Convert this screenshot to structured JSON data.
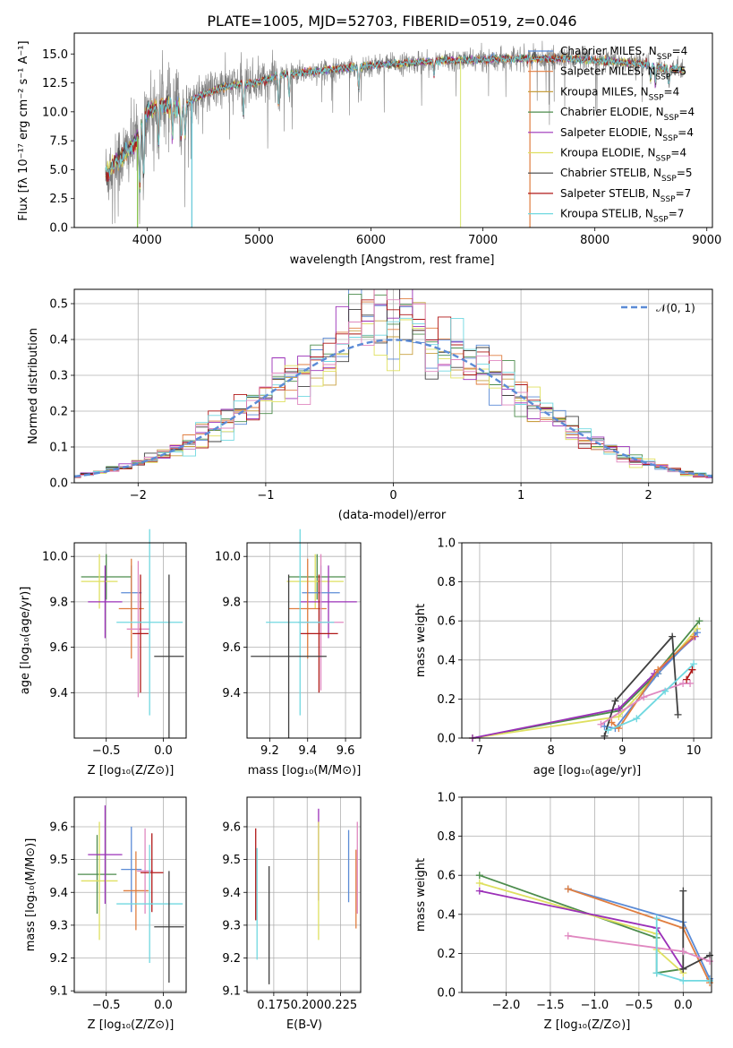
{
  "chart_data": [
    {
      "id": "spectrum",
      "type": "line",
      "title": "PLATE=1005, MJD=52703, FIBERID=0519, z=0.046",
      "xlabel": "wavelength [Angstrom, rest frame]",
      "ylabel": "Flux [fλ 10⁻¹⁷ erg cm⁻² s⁻¹ A⁻¹]",
      "xlim": [
        3350,
        9050
      ],
      "ylim": [
        0,
        16.8
      ],
      "xticks": [
        "4000",
        "5000",
        "6000",
        "7000",
        "8000",
        "9000"
      ],
      "yticks": [
        "0.0",
        "2.5",
        "5.0",
        "7.5",
        "10.0",
        "12.5",
        "15.0"
      ],
      "data_color": "#7f7f7f",
      "data_wavelength_range": [
        3630,
        8800
      ],
      "continuum": {
        "x": [
          3630,
          3700,
          3800,
          3900,
          3950,
          4000,
          4100,
          4200,
          4300,
          4400,
          4500,
          4700,
          5000,
          5200,
          5500,
          5800,
          6000,
          6300,
          6600,
          7000,
          7200,
          7500,
          7800,
          8000,
          8200,
          8400,
          8600,
          8800
        ],
        "y": [
          4.5,
          5.5,
          6.3,
          7.5,
          8.5,
          10.0,
          10.5,
          10.6,
          10.2,
          11.0,
          11.5,
          12.2,
          12.6,
          13.2,
          13.5,
          13.8,
          14.0,
          14.2,
          14.4,
          14.5,
          14.6,
          14.6,
          14.6,
          14.4,
          14.3,
          14.2,
          13.8,
          13.6
        ]
      },
      "absorption_features": [
        {
          "x": 3934,
          "y": 2.8
        },
        {
          "x": 3969,
          "y": 3.5
        },
        {
          "x": 4102,
          "y": 7.0
        },
        {
          "x": 4227,
          "y": 7.5
        },
        {
          "x": 4304,
          "y": 7.2
        },
        {
          "x": 4340,
          "y": 7.5
        },
        {
          "x": 4861,
          "y": 9.5
        },
        {
          "x": 5175,
          "y": 10.0
        },
        {
          "x": 5270,
          "y": 11.0
        },
        {
          "x": 5890,
          "y": 11.5
        },
        {
          "x": 6563,
          "y": 13.0
        },
        {
          "x": 8498,
          "y": 12.5
        },
        {
          "x": 8542,
          "y": 12.2
        },
        {
          "x": 8662,
          "y": 12.4
        }
      ],
      "model_edge_drops": [
        {
          "x": 3915,
          "color": "#7fbf3f"
        },
        {
          "x": 4400,
          "color": "#60c8d8"
        },
        {
          "x": 6800,
          "color": "#dde880"
        },
        {
          "x": 7420,
          "color": "#e07e40"
        }
      ],
      "series": [
        {
          "name": "Chabrier MILES, N",
          "sub": "SSP",
          "suffix": "=4",
          "color": "#5b8bd6"
        },
        {
          "name": "Salpeter MILES, N",
          "sub": "SSP",
          "suffix": "=5",
          "color": "#e07e40"
        },
        {
          "name": "Kroupa MILES, N",
          "sub": "SSP",
          "suffix": "=4",
          "color": "#c8a040"
        },
        {
          "name": "Chabrier ELODIE, N",
          "sub": "SSP",
          "suffix": "=4",
          "color": "#4c8c4c"
        },
        {
          "name": "Salpeter ELODIE, N",
          "sub": "SSP",
          "suffix": "=4",
          "color": "#9b30b8"
        },
        {
          "name": "Kroupa ELODIE, N",
          "sub": "SSP",
          "suffix": "=4",
          "color": "#dfe060"
        },
        {
          "name": "Chabrier STELIB, N",
          "sub": "SSP",
          "suffix": "=5",
          "color": "#404040"
        },
        {
          "name": "Salpeter STELIB, N",
          "sub": "SSP",
          "suffix": "=7",
          "color": "#b01818"
        },
        {
          "name": "Kroupa STELIB, N",
          "sub": "SSP",
          "suffix": "=7",
          "color": "#70d8e0"
        }
      ]
    },
    {
      "id": "residuals",
      "type": "histogram",
      "xlabel": "(data-model)/error",
      "ylabel": "Normed distribution",
      "xlim": [
        -2.5,
        2.5
      ],
      "ylim": [
        0,
        0.54
      ],
      "xticks": [
        "−2",
        "−1",
        "0",
        "1",
        "2"
      ],
      "yticks": [
        "0.0",
        "0.1",
        "0.2",
        "0.3",
        "0.4",
        "0.5"
      ],
      "legend": "𝒩(0, 1)",
      "gaussian_color": "#5b8bd6",
      "bin_width": 0.1,
      "histogram_colors": [
        "#5b8bd6",
        "#e07e40",
        "#c8a040",
        "#4c8c4c",
        "#9b30b8",
        "#dfe060",
        "#404040",
        "#b01818",
        "#70d8e0",
        "#e088c0"
      ]
    },
    {
      "id": "age-vs-Z",
      "type": "errorbar",
      "xlabel": "Z [log₁₀(Z/Z⊙)]",
      "ylabel": "age  [log₁₀(age/yr)]",
      "xlim": [
        -0.78,
        0.2
      ],
      "ylim": [
        9.2,
        10.06
      ],
      "xticks": [
        "−0.5",
        "0.0"
      ],
      "yticks": [
        "9.4",
        "9.6",
        "9.8",
        "10.0"
      ],
      "points": [
        {
          "x": -0.5,
          "y": 9.91,
          "xerr": 0.22,
          "yerr": 0.1,
          "color": "#4c8c4c"
        },
        {
          "x": -0.56,
          "y": 9.89,
          "xerr": 0.16,
          "yerr": 0.12,
          "color": "#dfe060"
        },
        {
          "x": -0.51,
          "y": 9.8,
          "xerr": 0.15,
          "yerr": 0.16,
          "color": "#9b30b8"
        },
        {
          "x": -0.28,
          "y": 9.84,
          "xerr": 0.09,
          "yerr": 0.12,
          "color": "#5b8bd6"
        },
        {
          "x": -0.28,
          "y": 9.77,
          "xerr": 0.11,
          "yerr": 0.22,
          "color": "#e07e40"
        },
        {
          "x": -0.22,
          "y": 9.68,
          "xerr": 0.1,
          "yerr": 0.3,
          "color": "#e088c0"
        },
        {
          "x": -0.2,
          "y": 9.66,
          "xerr": 0.07,
          "yerr": 0.26,
          "color": "#b01818"
        },
        {
          "x": -0.12,
          "y": 9.71,
          "xerr": 0.29,
          "yerr": 0.41,
          "color": "#70d8e0"
        },
        {
          "x": 0.05,
          "y": 9.56,
          "xerr": 0.13,
          "yerr": 0.36,
          "color": "#404040"
        }
      ]
    },
    {
      "id": "age-vs-mass",
      "type": "errorbar",
      "xlabel": "mass [log₁₀(M/M⊙)]",
      "ylabel": "",
      "xlim": [
        9.08,
        9.68
      ],
      "ylim": [
        9.2,
        10.06
      ],
      "xticks": [
        "9.2",
        "9.4",
        "9.6"
      ],
      "yticks": [
        "9.4",
        "9.6",
        "9.8",
        "10.0"
      ],
      "points": [
        {
          "x": 9.45,
          "y": 9.91,
          "xerr": 0.15,
          "yerr": 0.1,
          "color": "#4c8c4c"
        },
        {
          "x": 9.44,
          "y": 9.89,
          "xerr": 0.15,
          "yerr": 0.12,
          "color": "#dfe060"
        },
        {
          "x": 9.51,
          "y": 9.8,
          "xerr": 0.15,
          "yerr": 0.16,
          "color": "#9b30b8"
        },
        {
          "x": 9.47,
          "y": 9.84,
          "xerr": 0.1,
          "yerr": 0.12,
          "color": "#5b8bd6"
        },
        {
          "x": 9.4,
          "y": 9.77,
          "xerr": 0.1,
          "yerr": 0.22,
          "color": "#e07e40"
        },
        {
          "x": 9.47,
          "y": 9.71,
          "xerr": 0.12,
          "yerr": 0.3,
          "color": "#e088c0"
        },
        {
          "x": 9.46,
          "y": 9.66,
          "xerr": 0.1,
          "yerr": 0.26,
          "color": "#b01818"
        },
        {
          "x": 9.36,
          "y": 9.71,
          "xerr": 0.18,
          "yerr": 0.41,
          "color": "#70d8e0"
        },
        {
          "x": 9.3,
          "y": 9.56,
          "xerr": 0.2,
          "yerr": 0.36,
          "color": "#404040"
        }
      ]
    },
    {
      "id": "weight-vs-age",
      "type": "line",
      "xlabel": "age  [log₁₀(age/yr)]",
      "ylabel": "mass weight",
      "xlim": [
        6.75,
        10.25
      ],
      "ylim": [
        0,
        1.0
      ],
      "xticks": [
        "7",
        "8",
        "9",
        "10"
      ],
      "yticks": [
        "0.0",
        "0.2",
        "0.4",
        "0.6",
        "0.8",
        "1.0"
      ],
      "series": [
        {
          "color": "#4c8c4c",
          "x": [
            6.9,
            8.95,
            9.4,
            10.08
          ],
          "y": [
            0.0,
            0.14,
            0.3,
            0.6
          ]
        },
        {
          "color": "#dfe060",
          "x": [
            6.9,
            8.95,
            9.5,
            10.05
          ],
          "y": [
            0.0,
            0.11,
            0.33,
            0.56
          ]
        },
        {
          "color": "#9b30b8",
          "x": [
            6.9,
            8.95,
            9.45,
            10.02
          ],
          "y": [
            0.0,
            0.15,
            0.33,
            0.52
          ]
        },
        {
          "color": "#5b8bd6",
          "x": [
            8.75,
            8.9,
            9.5,
            10.05
          ],
          "y": [
            0.06,
            0.05,
            0.33,
            0.54
          ]
        },
        {
          "color": "#e07e40",
          "x": [
            8.85,
            8.95,
            9.5,
            10.0
          ],
          "y": [
            0.08,
            0.05,
            0.35,
            0.52
          ]
        },
        {
          "color": "#404040",
          "x": [
            8.75,
            8.9,
            9.7,
            9.78
          ],
          "y": [
            0.01,
            0.19,
            0.52,
            0.12
          ]
        },
        {
          "color": "#e088c0",
          "x": [
            8.7,
            9.3,
            9.85,
            9.95
          ],
          "y": [
            0.07,
            0.21,
            0.28,
            0.28
          ]
        },
        {
          "color": "#70d8e0",
          "x": [
            8.8,
            9.2,
            9.6,
            10.0
          ],
          "y": [
            0.04,
            0.1,
            0.24,
            0.38
          ]
        },
        {
          "color": "#b01818",
          "x": [
            9.9,
            9.98
          ],
          "y": [
            0.3,
            0.35
          ]
        }
      ]
    },
    {
      "id": "mass-vs-Z",
      "type": "errorbar",
      "xlabel": "Z [log₁₀(Z/Z⊙)]",
      "ylabel": "mass [log₁₀(M/M⊙)]",
      "xlim": [
        -0.78,
        0.2
      ],
      "ylim": [
        9.095,
        9.69
      ],
      "xticks": [
        "−0.5",
        "0.0"
      ],
      "yticks": [
        "9.1",
        "9.2",
        "9.3",
        "9.4",
        "9.5",
        "9.6"
      ],
      "points": [
        {
          "x": -0.58,
          "y": 9.455,
          "xerr": 0.17,
          "yerr": 0.12,
          "color": "#4c8c4c"
        },
        {
          "x": -0.56,
          "y": 9.435,
          "xerr": 0.16,
          "yerr": 0.18,
          "color": "#dfe060"
        },
        {
          "x": -0.51,
          "y": 9.515,
          "xerr": 0.15,
          "yerr": 0.15,
          "color": "#9b30b8"
        },
        {
          "x": -0.28,
          "y": 9.47,
          "xerr": 0.09,
          "yerr": 0.13,
          "color": "#5b8bd6"
        },
        {
          "x": -0.24,
          "y": 9.405,
          "xerr": 0.11,
          "yerr": 0.12,
          "color": "#e07e40"
        },
        {
          "x": -0.16,
          "y": 9.465,
          "xerr": 0.07,
          "yerr": 0.13,
          "color": "#e088c0"
        },
        {
          "x": -0.1,
          "y": 9.46,
          "xerr": 0.1,
          "yerr": 0.12,
          "color": "#b01818"
        },
        {
          "x": -0.12,
          "y": 9.365,
          "xerr": 0.29,
          "yerr": 0.18,
          "color": "#70d8e0"
        },
        {
          "x": 0.05,
          "y": 9.295,
          "xerr": 0.13,
          "yerr": 0.17,
          "color": "#404040"
        }
      ]
    },
    {
      "id": "mass-vs-EBV",
      "type": "errorbar",
      "xlabel": "E(B-V)",
      "ylabel": "",
      "xlim": [
        0.155,
        0.24
      ],
      "ylim": [
        9.095,
        9.69
      ],
      "xticks": [
        "0.175",
        "0.200",
        "0.225"
      ],
      "yticks": [
        "9.1",
        "9.2",
        "9.3",
        "9.4",
        "9.5",
        "9.6"
      ],
      "points": [
        {
          "x": 0.1615,
          "y": 9.455,
          "yerr": 0.14,
          "color": "#b01818"
        },
        {
          "x": 0.1625,
          "y": 9.365,
          "yerr": 0.17,
          "color": "#70d8e0"
        },
        {
          "x": 0.1715,
          "y": 9.3,
          "yerr": 0.18,
          "color": "#404040"
        },
        {
          "x": 0.2085,
          "y": 9.515,
          "yerr": 0.14,
          "color": "#9b30b8"
        },
        {
          "x": 0.2085,
          "y": 9.435,
          "yerr": 0.18,
          "color": "#dfe060"
        },
        {
          "x": 0.231,
          "y": 9.48,
          "yerr": 0.11,
          "color": "#5b8bd6"
        },
        {
          "x": 0.2365,
          "y": 9.41,
          "yerr": 0.12,
          "color": "#e07e40"
        },
        {
          "x": 0.2375,
          "y": 9.475,
          "yerr": 0.14,
          "color": "#e088c0"
        }
      ]
    },
    {
      "id": "weight-vs-Z",
      "type": "line",
      "xlabel": "Z [log₁₀(Z/Z⊙)]",
      "ylabel": "mass weight",
      "xlim": [
        -2.5,
        0.32
      ],
      "ylim": [
        0,
        1.0
      ],
      "xticks": [
        "−2.0",
        "−1.5",
        "−1.0",
        "−0.5",
        "0.0"
      ],
      "yticks": [
        "0.0",
        "0.2",
        "0.4",
        "0.6",
        "0.8",
        "1.0"
      ],
      "series": [
        {
          "color": "#4c8c4c",
          "x": [
            -2.3,
            -0.3,
            -0.3,
            0.0
          ],
          "y": [
            0.6,
            0.28,
            0.1,
            0.12
          ]
        },
        {
          "color": "#dfe060",
          "x": [
            -2.3,
            -0.3,
            -0.3,
            0.0
          ],
          "y": [
            0.56,
            0.3,
            0.22,
            0.1
          ]
        },
        {
          "color": "#9b30b8",
          "x": [
            -2.3,
            -0.3,
            0.0
          ],
          "y": [
            0.52,
            0.33,
            0.12
          ]
        },
        {
          "color": "#5b8bd6",
          "x": [
            -1.3,
            0.0,
            0.3
          ],
          "y": [
            0.53,
            0.36,
            0.07
          ]
        },
        {
          "color": "#e07e40",
          "x": [
            -1.3,
            0.0,
            0.3
          ],
          "y": [
            0.53,
            0.33,
            0.05
          ]
        },
        {
          "color": "#404040",
          "x": [
            0.0,
            0.0,
            0.3
          ],
          "y": [
            0.52,
            0.12,
            0.19
          ]
        },
        {
          "color": "#e088c0",
          "x": [
            -1.3,
            0.0,
            0.3
          ],
          "y": [
            0.29,
            0.21,
            0.16
          ]
        },
        {
          "color": "#70d8e0",
          "x": [
            -0.3,
            -0.3,
            0.0,
            0.3
          ],
          "y": [
            0.38,
            0.1,
            0.06,
            0.06
          ]
        }
      ]
    }
  ]
}
